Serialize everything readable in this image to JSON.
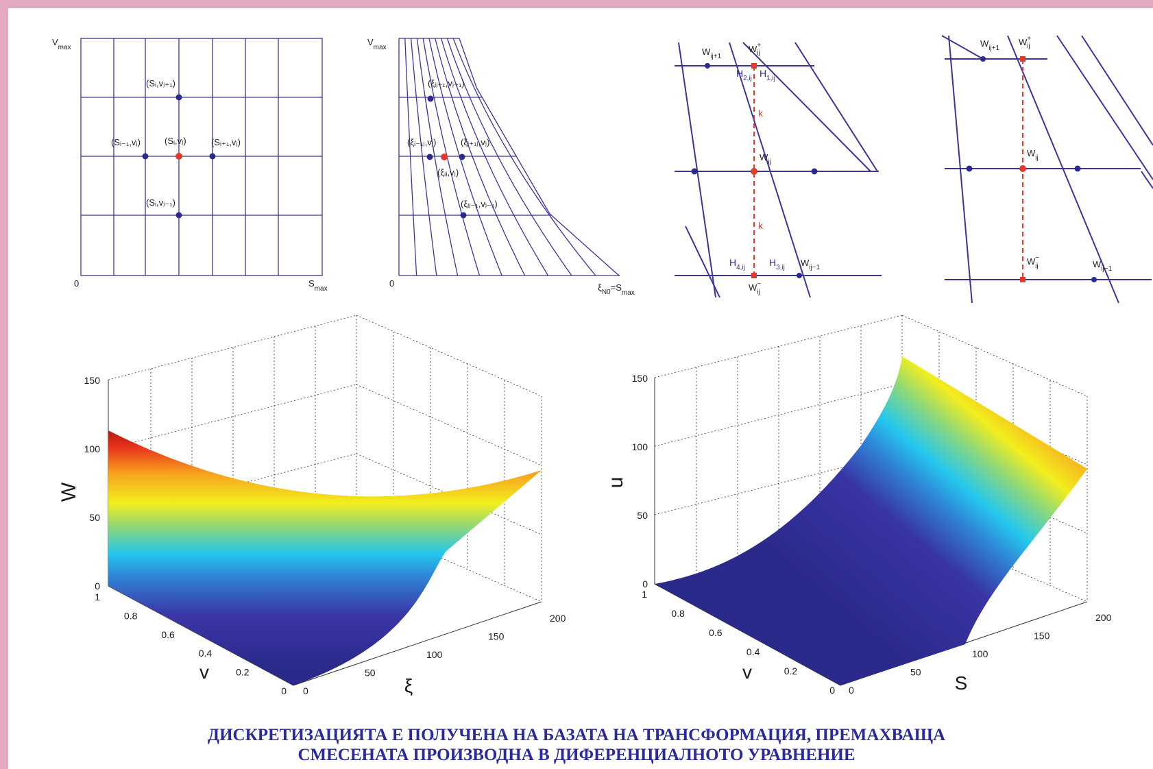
{
  "colors": {
    "border": "#e2a9c0",
    "grid": "#3a349c",
    "node_blue": "#2c2a8e",
    "node_red": "#e23a2a",
    "caption": "#2a2a9c"
  },
  "panel1": {
    "vmax": "V",
    "vmax_sub": "max",
    "zero": "0",
    "smax": "S",
    "smax_sub": "max",
    "node_top": "(Sᵢ,vⱼ₊₁)",
    "node_left": "(Sᵢ₋₁,vⱼ)",
    "node_center": "(Sᵢ,vⱼ)",
    "node_right": "(Sᵢ₊₁,vⱼ)",
    "node_bottom": "(Sᵢ,vⱼ₋₁)"
  },
  "panel2": {
    "vmax": "V",
    "vmax_sub": "max",
    "zero": "0",
    "xi_end": "ξ",
    "xi_end_sub": "N0",
    "xi_end_eq": "=S",
    "xi_end_eq_sub": "max",
    "node_top": "(ξᵢⱼ₊₁,vⱼ₊₁)",
    "node_left": "(ξᵢ₋₁ⱼ,vⱼ)",
    "node_right": "(ξᵢ₊₁ⱼ,vⱼ)",
    "node_center": "(ξᵢⱼ,vⱼ)",
    "node_bottom": "(ξᵢⱼ₋₁,vⱼ₋₁)"
  },
  "panel3": {
    "w_left_top": "W",
    "w_left_top_sub": "ij+1",
    "w_plus": "W",
    "w_plus_sub": "ij",
    "w_plus_sup": "+",
    "h2": "H",
    "h2_sub": "2,ij",
    "h1": "H",
    "h1_sub": "1,ij",
    "k_upper": "k",
    "w_center": "W",
    "w_center_sub": "ij",
    "k_lower": "k",
    "h4": "H",
    "h4_sub": "4,ij",
    "h3": "H",
    "h3_sub": "3,ij",
    "w_right_bottom": "W",
    "w_right_bottom_sub": "ij−1",
    "w_minus": "W",
    "w_minus_sub": "ij",
    "w_minus_sup": "−"
  },
  "panel4": {
    "w_left_top": "W",
    "w_left_top_sub": "ij+1",
    "w_plus": "W",
    "w_plus_sub": "ij",
    "w_plus_sup": "+",
    "w_center": "W",
    "w_center_sub": "ij",
    "w_minus": "W",
    "w_minus_sub": "ij",
    "w_minus_sup": "−",
    "w_right_bottom": "W",
    "w_right_bottom_sub": "ij−1"
  },
  "plot_left": {
    "z_label": "W",
    "z_ticks": [
      "0",
      "50",
      "100",
      "150"
    ],
    "v_label": "v",
    "v_ticks": [
      "0",
      "0.2",
      "0.4",
      "0.6",
      "0.8",
      "1"
    ],
    "x_label": "ξ",
    "x_ticks": [
      "0",
      "50",
      "100",
      "150",
      "200"
    ]
  },
  "plot_right": {
    "z_label": "u",
    "z_ticks": [
      "0",
      "50",
      "100",
      "150"
    ],
    "v_label": "v",
    "v_ticks": [
      "0",
      "0.2",
      "0.4",
      "0.6",
      "0.8",
      "1"
    ],
    "x_label": "S",
    "x_ticks": [
      "0",
      "50",
      "100",
      "150",
      "200"
    ]
  },
  "caption": {
    "line1": "ДИСКРЕТИЗАЦИЯТА Е ПОЛУЧЕНА НА БАЗАТА НА ТРАНСФОРМАЦИЯ,  ПРЕМАХВАЩА",
    "line2": "СМЕСЕНАТА ПРОИЗВОДНА В ДИФЕРЕНЦИАЛНОТО УРАВНЕНИЕ"
  }
}
